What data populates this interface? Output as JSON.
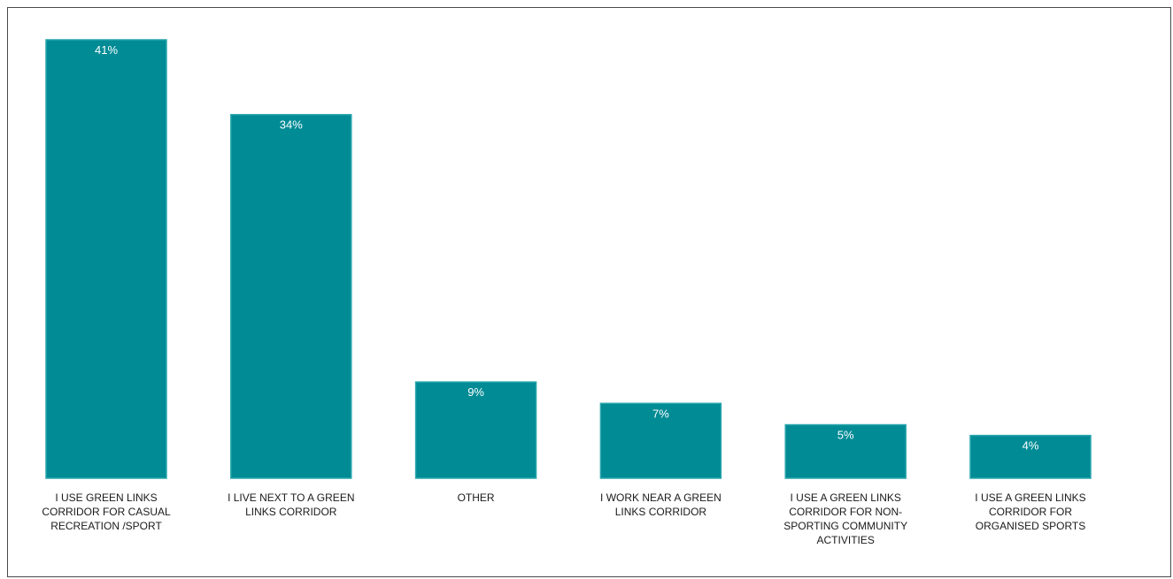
{
  "chart_data": {
    "type": "bar",
    "categories": [
      "I USE GREEN LINKS CORRIDOR FOR CASUAL RECREATION /SPORT",
      "I LIVE NEXT TO A GREEN LINKS CORRIDOR",
      "OTHER",
      "I WORK NEAR A GREEN LINKS CORRIDOR",
      "I USE A GREEN LINKS CORRIDOR FOR NON-SPORTING COMMUNITY ACTIVITIES",
      "I USE A GREEN LINKS CORRIDOR FOR ORGANISED SPORTS"
    ],
    "category_lines": [
      [
        "I USE GREEN LINKS",
        "CORRIDOR FOR CASUAL",
        "RECREATION /SPORT"
      ],
      [
        "I LIVE NEXT TO A GREEN",
        "LINKS CORRIDOR"
      ],
      [
        "OTHER"
      ],
      [
        "I WORK NEAR A GREEN",
        "LINKS CORRIDOR"
      ],
      [
        "I USE A GREEN LINKS",
        "CORRIDOR FOR NON-",
        "SPORTING COMMUNITY",
        "ACTIVITIES"
      ],
      [
        "I USE A GREEN LINKS",
        "CORRIDOR FOR",
        "ORGANISED SPORTS"
      ]
    ],
    "values": [
      41,
      34,
      9,
      7,
      5,
      4
    ],
    "value_labels": [
      "41%",
      "34%",
      "9%",
      "7%",
      "5%",
      "4%"
    ],
    "unit": "%",
    "ylim": [
      0,
      41
    ],
    "grid": false,
    "legend": "none",
    "bar_color": "#008b95",
    "bar_edge_color": "#2aa6ad",
    "label_color": "#ffffff",
    "category_label_color": "#1a1a1a",
    "frame_color": "#4a4a4a"
  }
}
